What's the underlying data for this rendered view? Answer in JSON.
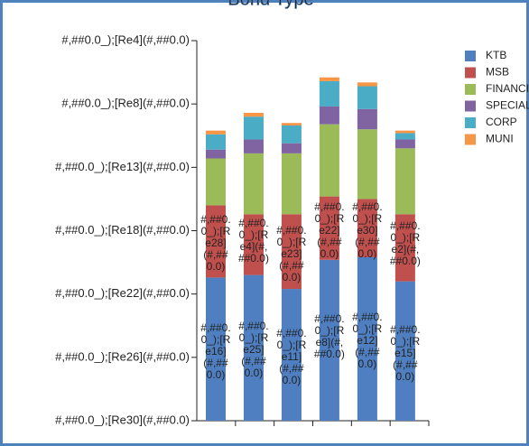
{
  "chart_data": {
    "type": "stacked_bar",
    "title": "Bond Type",
    "categories": [
      null,
      null,
      null,
      null,
      null,
      null
    ],
    "series": [
      {
        "name": "KTB",
        "color": "#4f7fc0",
        "values": [
          11.3,
          11.5,
          10.4,
          12.7,
          12.9,
          11.0
        ],
        "value_labels": [
          "#,##0.0_);[Re16](#,##0.0)",
          "#,##0.0_);[Re25](#,##0.0)",
          "#,##0.0_);[Re11](#,##0.0)",
          "#,##0.0_);[Re8](#,##0.0)",
          "#,##0.0_);[Re12](#,##0.0)",
          "#,##0.0_);[Re15](#,##0.0)"
        ]
      },
      {
        "name": "MSB",
        "color": "#c0504d",
        "values": [
          5.7,
          4.8,
          5.9,
          5.0,
          4.6,
          5.3
        ],
        "value_labels": [
          "#,##0.0_);[Re28](#,##0.0)",
          "#,##0.0_);[Re4](#,##0.0)",
          "#,##0.0_);[Re23](#,##0.0)",
          "#,##0.0_);[Re22](#,##0.0)",
          "#,##0.0_);[Re30](#,##0.0)",
          "#,##0.0_);[Re2](#,##0.0)"
        ]
      },
      {
        "name": "FINANCIAL",
        "color": "#9bbb59",
        "values": [
          3.7,
          4.8,
          4.8,
          5.7,
          5.5,
          5.2
        ]
      },
      {
        "name": "SPECIAL",
        "color": "#8064a2",
        "values": [
          0.7,
          1.1,
          0.8,
          1.4,
          1.6,
          0.7
        ]
      },
      {
        "name": "CORP",
        "color": "#4bacc6",
        "values": [
          1.2,
          1.8,
          1.4,
          2.0,
          1.8,
          0.5
        ]
      },
      {
        "name": "MUNI",
        "color": "#f79646",
        "values": [
          0.3,
          0.3,
          0.2,
          0.3,
          0.3,
          0.2
        ]
      }
    ],
    "ylim": [
      0,
      30
    ],
    "yticks": [
      {
        "value": 0,
        "label": "#,##0.0_);[Re30](#,##0.0)"
      },
      {
        "value": 5,
        "label": "#,##0.0_);[Re26](#,##0.0)"
      },
      {
        "value": 10,
        "label": "#,##0.0_);[Re22](#,##0.0)"
      },
      {
        "value": 15,
        "label": "#,##0.0_);[Re18](#,##0.0)"
      },
      {
        "value": 20,
        "label": "#,##0.0_);[Re13](#,##0.0)"
      },
      {
        "value": 25,
        "label": "#,##0.0_);[Re8](#,##0.0)"
      },
      {
        "value": 30,
        "label": "#,##0.0_);[Re4](#,##0.0)"
      }
    ],
    "grid": false,
    "legend": "right"
  }
}
